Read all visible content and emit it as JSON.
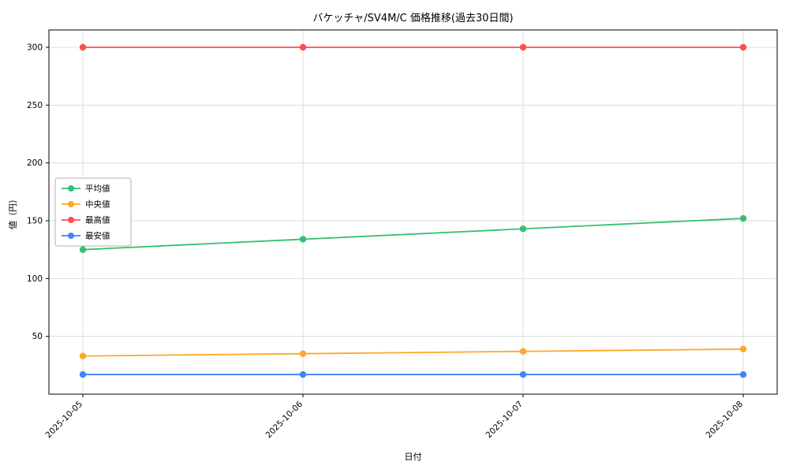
{
  "chart_data": {
    "type": "line",
    "title": "バケッチャ/SV4M/C 価格推移(過去30日間)",
    "xlabel": "日付",
    "ylabel": "値（円）",
    "x": [
      "2025-10-05",
      "2025-10-06",
      "2025-10-07",
      "2025-10-08"
    ],
    "series": [
      {
        "name": "平均値",
        "color": "#34c071",
        "values": [
          125,
          134,
          143,
          152
        ]
      },
      {
        "name": "中央値",
        "color": "#ffa726",
        "values": [
          33,
          35,
          37,
          39
        ]
      },
      {
        "name": "最高値",
        "color": "#ff4d4d",
        "values": [
          300,
          300,
          300,
          300
        ]
      },
      {
        "name": "最安値",
        "color": "#4285f4",
        "values": [
          17,
          17,
          17,
          17
        ]
      }
    ],
    "yticks": [
      50,
      100,
      150,
      200,
      250,
      300
    ],
    "ylim": [
      0,
      315
    ],
    "grid": true,
    "legend_position": "center-left",
    "grid_color": "#dcdcdc",
    "frame_color": "#000000"
  }
}
